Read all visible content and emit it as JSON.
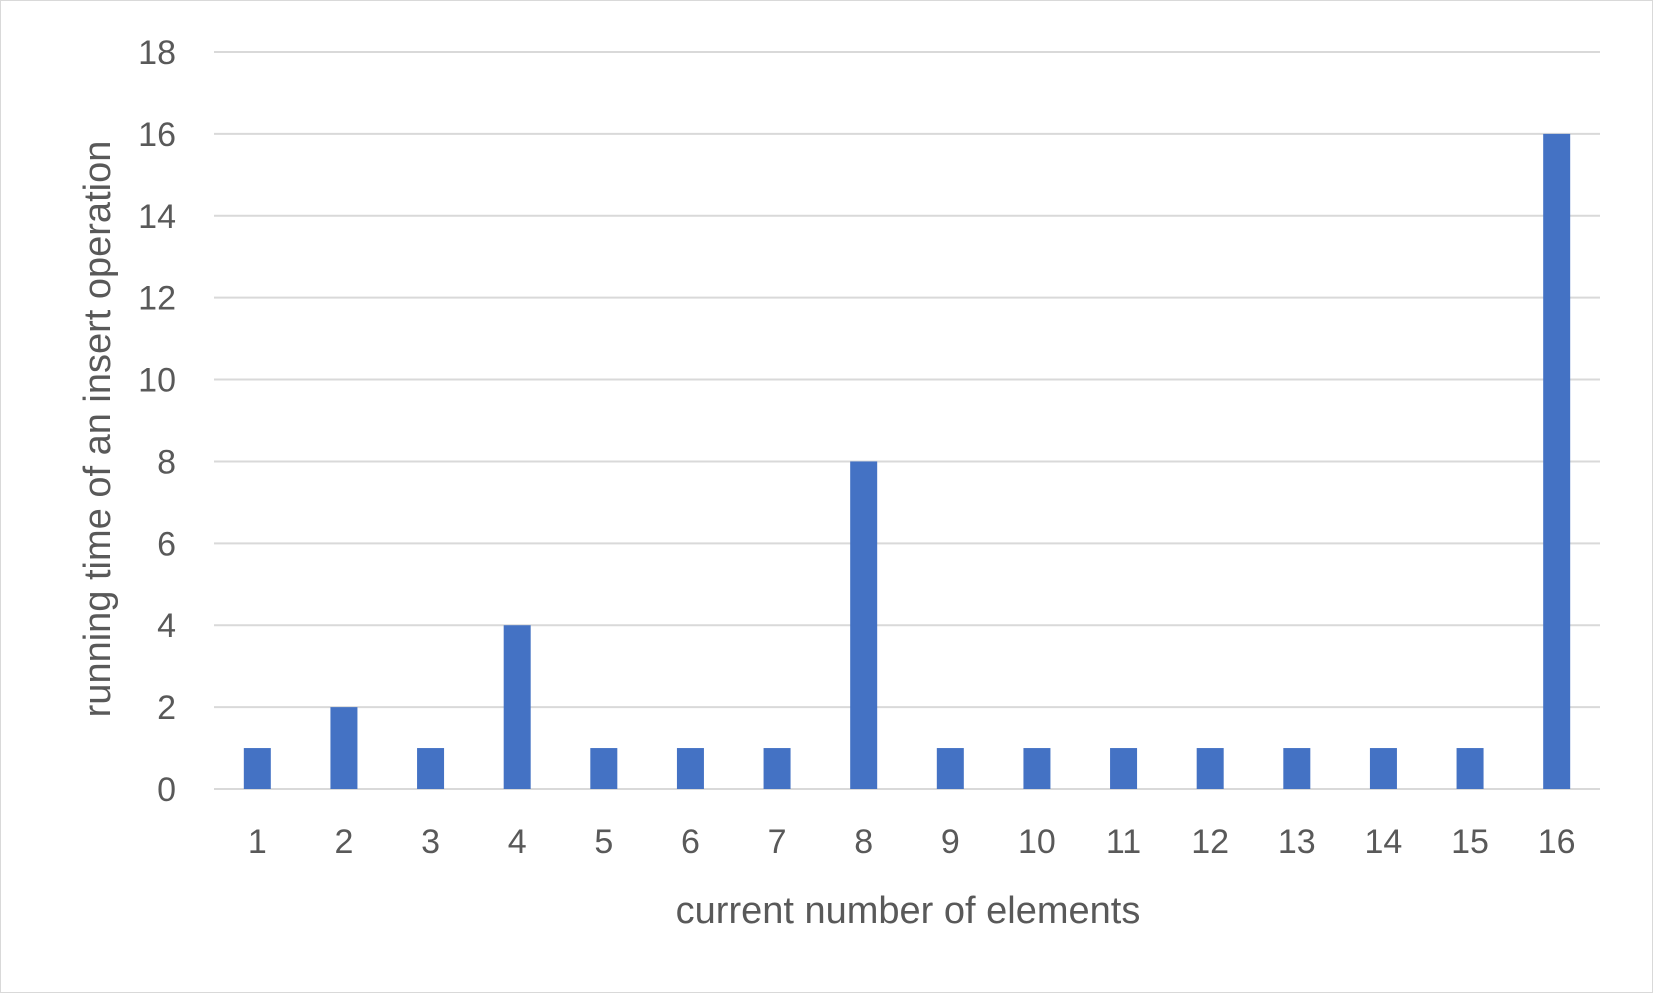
{
  "chart_data": {
    "type": "bar",
    "categories": [
      "1",
      "2",
      "3",
      "4",
      "5",
      "6",
      "7",
      "8",
      "9",
      "10",
      "11",
      "12",
      "13",
      "14",
      "15",
      "16"
    ],
    "values": [
      1,
      2,
      1,
      4,
      1,
      1,
      1,
      8,
      1,
      1,
      1,
      1,
      1,
      1,
      1,
      16
    ],
    "title": "",
    "xlabel": "current number of elements",
    "ylabel": "running time of an insert operation",
    "ylim": [
      0,
      18
    ],
    "yticks": [
      0,
      2,
      4,
      6,
      8,
      10,
      12,
      14,
      16,
      18
    ],
    "grid": true,
    "legend": "none",
    "bar_color": "#4472c4",
    "grid_color": "#d9d9d9",
    "text_color": "#595959"
  }
}
